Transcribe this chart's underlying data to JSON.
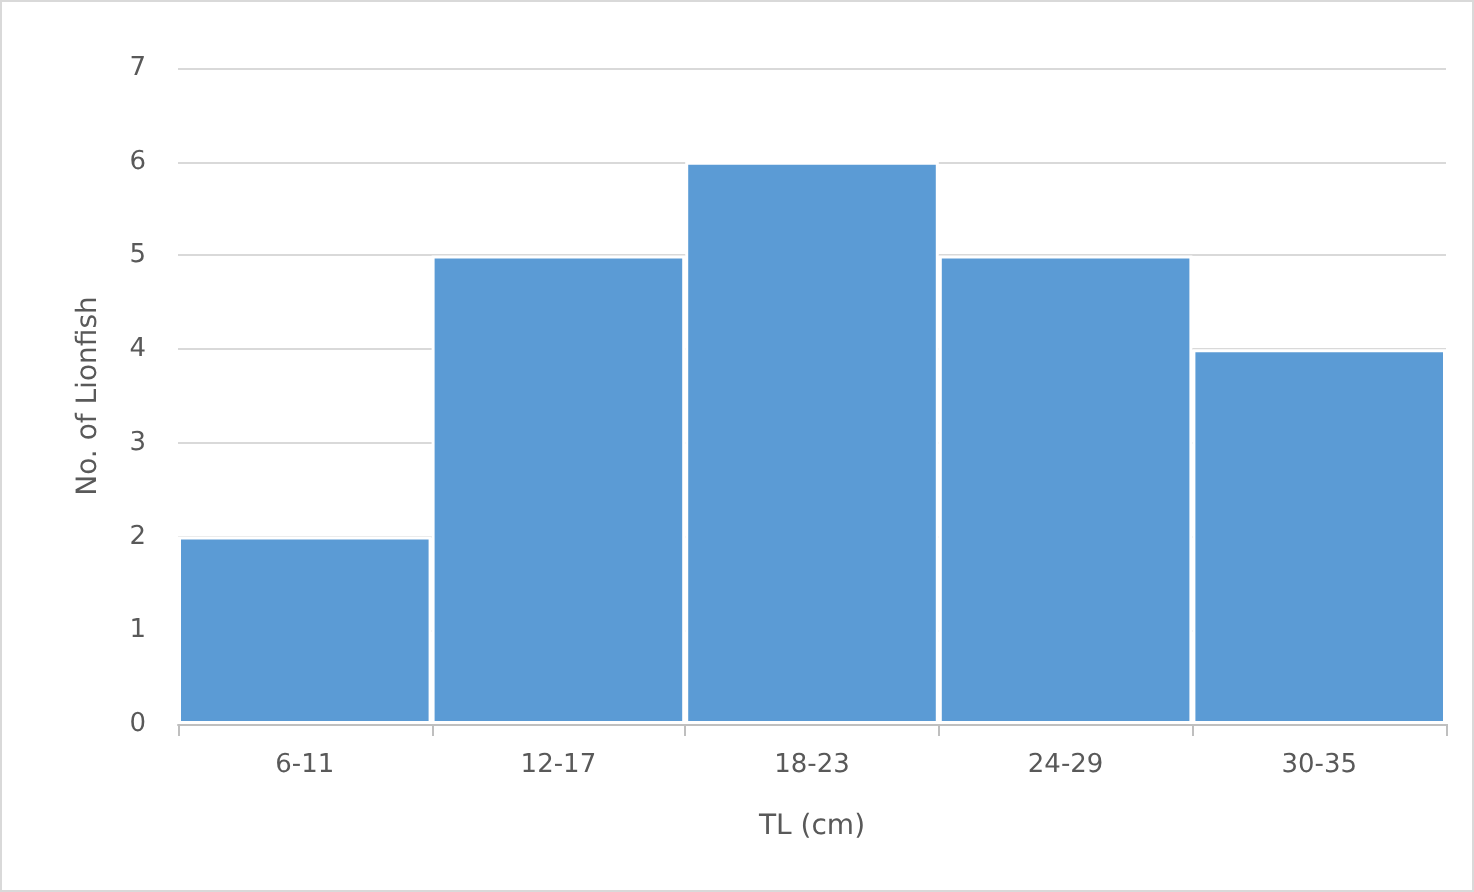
{
  "chart_data": {
    "type": "bar",
    "xlabel": "TL (cm)",
    "ylabel": "No. of Lionfish",
    "categories": [
      "6-11",
      "12-17",
      "18-23",
      "24-29",
      "30-35"
    ],
    "values": [
      2,
      5,
      6,
      5,
      4
    ],
    "color": "#5b9bd5",
    "ylim": [
      0,
      7
    ],
    "yticks": [
      0,
      1,
      2,
      3,
      4,
      5,
      6,
      7
    ],
    "grid": "y"
  }
}
